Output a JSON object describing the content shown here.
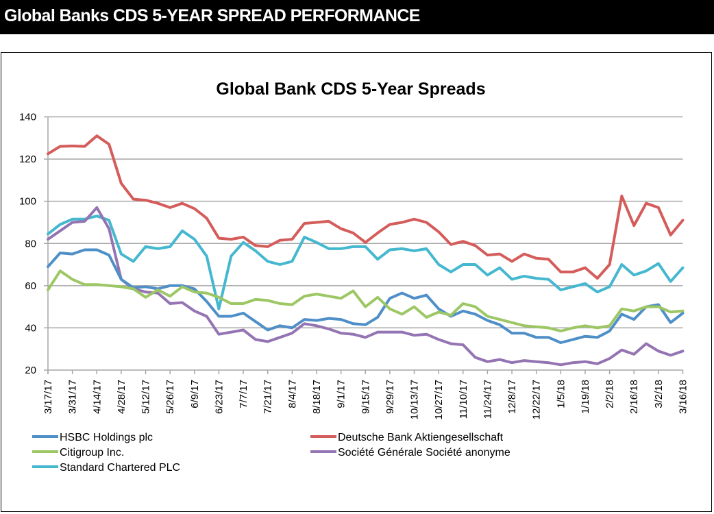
{
  "header": {
    "title": "Global Banks CDS 5-YEAR SPREAD PERFORMANCE"
  },
  "chart_data": {
    "type": "line",
    "title": "Global Bank CDS 5-Year Spreads",
    "xlabel": "",
    "ylabel": "",
    "ylim": [
      20,
      140
    ],
    "yticks": [
      20,
      40,
      60,
      80,
      100,
      120,
      140
    ],
    "grid": true,
    "legend_position": "bottom",
    "x_tick_labels": [
      "3/17/17",
      "3/31/17",
      "4/14/17",
      "4/28/17",
      "5/12/17",
      "5/26/17",
      "6/9/17",
      "6/23/17",
      "7/7/17",
      "7/21/17",
      "8/4/17",
      "8/18/17",
      "9/1/17",
      "9/15/17",
      "9/29/17",
      "10/13/17",
      "10/27/17",
      "11/10/17",
      "11/24/17",
      "12/8/17",
      "12/22/17",
      "1/5/18",
      "1/19/18",
      "2/2/18",
      "2/16/18",
      "3/2/18",
      "3/16/18"
    ],
    "x_points_count": 53,
    "x_frequency": "weekly",
    "series": [
      {
        "name": "HSBC Holdings plc",
        "color": "#4f8fc8",
        "values": [
          69,
          75.5,
          75,
          77,
          77,
          74.5,
          63,
          59,
          59.5,
          58.5,
          60,
          60,
          58.5,
          52.5,
          45.5,
          45.5,
          47,
          43,
          39,
          41,
          40,
          44,
          43.5,
          44.5,
          44,
          42,
          41.5,
          45,
          54,
          56.5,
          54,
          55.5,
          49,
          45.5,
          48,
          46.5,
          43.5,
          41.5,
          37.5,
          37.5,
          35.5,
          35.5,
          33,
          34.5,
          36,
          35.5,
          38.5,
          46.5,
          44,
          50,
          51,
          42.5,
          47
        ]
      },
      {
        "name": "Deutsche Bank Aktiengesellschaft",
        "color": "#d45c5a",
        "values": [
          122.5,
          126,
          126.2,
          126,
          131,
          127,
          108.5,
          101,
          100.5,
          99,
          97,
          99,
          96.5,
          92,
          82.5,
          82,
          83,
          79,
          78.5,
          81.5,
          82,
          89.5,
          90,
          90.5,
          87,
          85,
          80.5,
          85,
          89,
          90,
          91.5,
          90,
          85.5,
          79.5,
          81,
          79,
          74.5,
          75,
          71.5,
          75,
          73,
          72.5,
          66.5,
          66.5,
          68.5,
          63.5,
          70,
          102.5,
          88.5,
          99,
          97,
          84,
          91
        ]
      },
      {
        "name": "Citigroup Inc.",
        "color": "#9dc765",
        "values": [
          58,
          67,
          63,
          60.5,
          60.5,
          60,
          59.5,
          58.5,
          54.5,
          58,
          55,
          59.5,
          57,
          56.5,
          54.5,
          51.5,
          51.5,
          53.5,
          53,
          51.5,
          51,
          55,
          56,
          55,
          54,
          57.5,
          50,
          54.5,
          49,
          46.5,
          50,
          45,
          47.5,
          46,
          51.5,
          50,
          45.5,
          44,
          42.5,
          41,
          40.5,
          40,
          38.5,
          40,
          41,
          40,
          41,
          49,
          48,
          50,
          50,
          47.5,
          48
        ]
      },
      {
        "name": "Société Générale Société anonyme",
        "color": "#9474b3",
        "values": [
          82,
          86,
          90,
          90.5,
          97,
          87,
          63,
          58.5,
          57,
          56.5,
          51.5,
          52,
          48,
          45.5,
          37,
          38,
          39,
          34.5,
          33.5,
          35.5,
          37.5,
          42,
          41,
          39.5,
          37.5,
          37,
          35.5,
          38,
          38,
          38,
          36.5,
          37,
          34.5,
          32.5,
          32,
          26,
          24,
          25,
          23.5,
          24.5,
          24,
          23.5,
          22.5,
          23.5,
          24,
          23,
          25.5,
          29.5,
          27.5,
          32.5,
          29,
          27,
          29
        ]
      },
      {
        "name": "Standard Chartered PLC",
        "color": "#45b8d0",
        "values": [
          84.5,
          89,
          91.5,
          91.5,
          93,
          91,
          75,
          71.5,
          78.5,
          77.5,
          78.5,
          86,
          82,
          74,
          49,
          74,
          80.5,
          76.5,
          71.5,
          70,
          71.5,
          83,
          80.5,
          77.5,
          77.5,
          78.5,
          78.5,
          72.5,
          77,
          77.5,
          76.5,
          77.5,
          70,
          66.5,
          70,
          70,
          65,
          68.5,
          63,
          64.5,
          63.5,
          63,
          58,
          59.5,
          61,
          57,
          59.5,
          70,
          65,
          67,
          70.5,
          62,
          68.5
        ]
      }
    ]
  }
}
